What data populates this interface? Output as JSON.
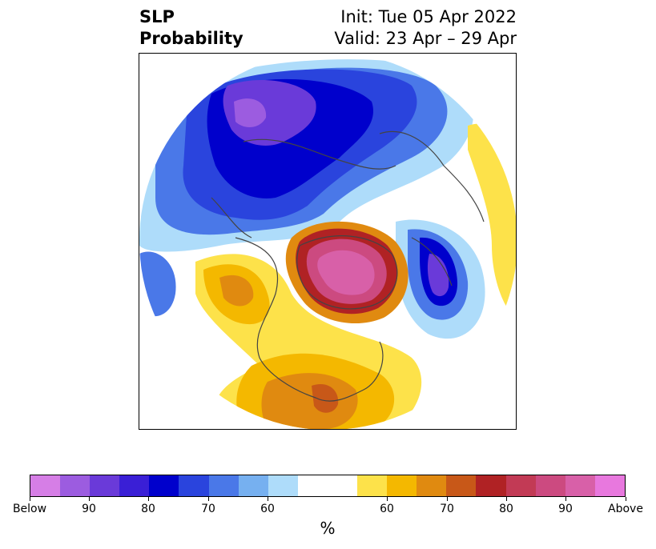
{
  "title": {
    "left_line1": "SLP",
    "left_line2": "Probability",
    "right_line1": "Init: Tue 05 Apr 2022",
    "right_line2": "Valid: 23 Apr – 29 Apr"
  },
  "colorbar": {
    "unit": "%",
    "colors": [
      "#d67ee6",
      "#9c5ce0",
      "#6a3ad9",
      "#3a1fd6",
      "#0000cc",
      "#2a44dd",
      "#4a78e8",
      "#76b0f0",
      "#aedcfa",
      "#ffffff",
      "#ffffff",
      "#fde24a",
      "#f4b800",
      "#e08a10",
      "#c85818",
      "#b02224",
      "#c23a55",
      "#cc4a80",
      "#d860a8",
      "#e878de"
    ],
    "tick_labels": [
      "Below",
      "90",
      "80",
      "70",
      "60",
      "60",
      "70",
      "80",
      "90",
      "Above"
    ]
  },
  "map": {
    "description_colors": {
      "below_strong": "#6a3ad9",
      "below": "#0000cc",
      "above": "#f4b800",
      "above_strong": "#d860a8"
    }
  }
}
